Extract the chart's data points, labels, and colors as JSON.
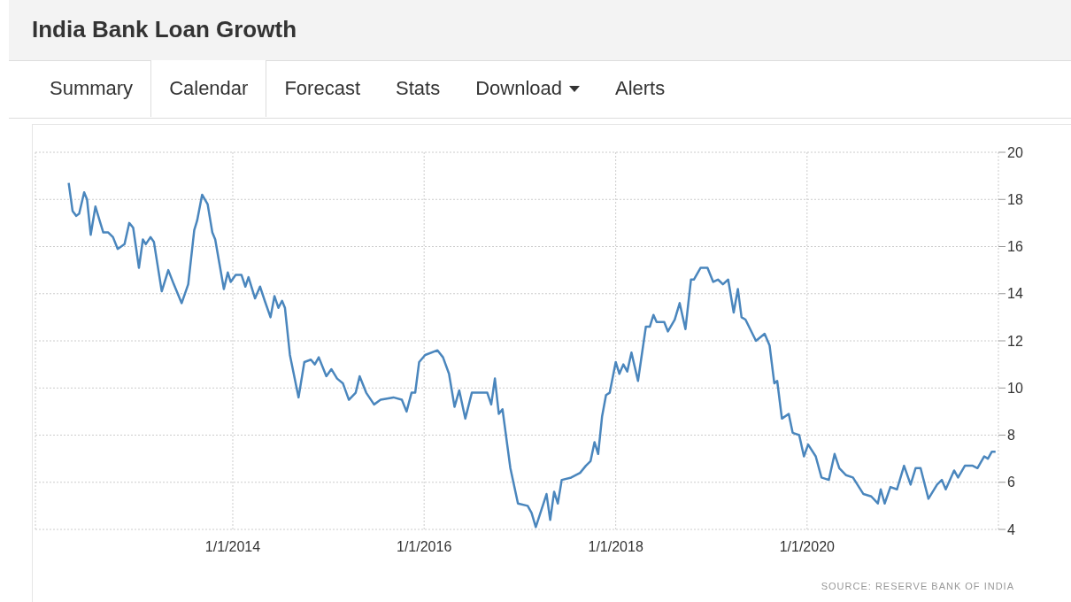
{
  "chart_data": {
    "type": "line",
    "title": "India Bank Loan Growth",
    "annotations": [
      "Summary",
      "Calendar",
      "Forecast",
      "Stats",
      "Download",
      "Alerts",
      "SOURCE: RESERVE BANK OF INDIA"
    ],
    "x": [
      "2012-04-15",
      "2012-04-30",
      "2012-05-14",
      "2012-05-25",
      "2012-06-13",
      "2012-06-24",
      "2012-07-08",
      "2012-07-26",
      "2012-08-11",
      "2012-08-25",
      "2012-09-13",
      "2012-10-01",
      "2012-10-19",
      "2012-11-14",
      "2012-12-02",
      "2012-12-17",
      "2013-01-08",
      "2013-01-23",
      "2013-02-03",
      "2013-02-21",
      "2013-03-06",
      "2013-04-05",
      "2013-04-30",
      "2013-05-21",
      "2013-06-20",
      "2013-07-15",
      "2013-08-07",
      "2013-08-18",
      "2013-09-06",
      "2013-09-27",
      "2013-10-15",
      "2013-10-26",
      "2013-11-28",
      "2013-12-13",
      "2013-12-24",
      "2014-01-12",
      "2014-02-03",
      "2014-02-18",
      "2014-03-02",
      "2014-03-27",
      "2014-04-15",
      "2014-05-03",
      "2014-05-25",
      "2014-06-09",
      "2014-06-24",
      "2014-07-08",
      "2014-07-19",
      "2014-08-07",
      "2014-09-09",
      "2014-10-01",
      "2014-10-26",
      "2014-11-10",
      "2014-11-25",
      "2014-12-24",
      "2015-01-12",
      "2015-02-03",
      "2015-02-25",
      "2015-03-20",
      "2015-04-15",
      "2015-04-30",
      "2015-05-25",
      "2015-06-24",
      "2015-07-19",
      "2015-09-06",
      "2015-10-08",
      "2015-10-26",
      "2015-11-14",
      "2015-11-28",
      "2015-12-13",
      "2016-01-05",
      "2016-02-21",
      "2016-03-13",
      "2016-04-05",
      "2016-04-26",
      "2016-05-14",
      "2016-06-06",
      "2016-07-01",
      "2016-07-30",
      "2016-08-29",
      "2016-09-13",
      "2016-09-27",
      "2016-10-12",
      "2016-10-26",
      "2016-11-25",
      "2016-12-24",
      "2017-01-30",
      "2017-02-14",
      "2017-03-02",
      "2017-04-12",
      "2017-04-26",
      "2017-05-11",
      "2017-05-25",
      "2017-06-09",
      "2017-07-15",
      "2017-08-18",
      "2017-09-09",
      "2017-09-27",
      "2017-10-12",
      "2017-10-26",
      "2017-11-10",
      "2017-11-25",
      "2017-12-09",
      "2018-01-01",
      "2018-01-15",
      "2018-01-30",
      "2018-02-14",
      "2018-03-02",
      "2018-03-27",
      "2018-04-26",
      "2018-05-11",
      "2018-05-25",
      "2018-06-06",
      "2018-07-05",
      "2018-07-19",
      "2018-08-14",
      "2018-09-02",
      "2018-09-24",
      "2018-10-15",
      "2018-10-26",
      "2018-11-21",
      "2018-12-17",
      "2019-01-08",
      "2019-01-26",
      "2019-02-14",
      "2019-03-06",
      "2019-03-27",
      "2019-04-12",
      "2019-04-26",
      "2019-05-11",
      "2019-06-20",
      "2019-07-23",
      "2019-08-11",
      "2019-08-29",
      "2019-09-09",
      "2019-09-27",
      "2019-10-23",
      "2019-11-07",
      "2019-12-02",
      "2019-12-20",
      "2020-01-05",
      "2020-02-03",
      "2020-02-25",
      "2020-03-24",
      "2020-04-15",
      "2020-05-03",
      "2020-05-29",
      "2020-06-24",
      "2020-08-03",
      "2020-09-02",
      "2020-09-27",
      "2020-10-08",
      "2020-10-23",
      "2020-11-14",
      "2020-12-09",
      "2021-01-05",
      "2021-01-30",
      "2021-02-18",
      "2021-03-09",
      "2021-04-08",
      "2021-05-11",
      "2021-05-29",
      "2021-06-13",
      "2021-07-15",
      "2021-07-30",
      "2021-08-25",
      "2021-09-24",
      "2021-10-12",
      "2021-11-07",
      "2021-11-21",
      "2021-12-06",
      "2021-12-20"
    ],
    "series": [
      {
        "color": "#4a86bd",
        "values": [
          18.7,
          17.5,
          17.3,
          17.4,
          18.3,
          18.0,
          16.5,
          17.7,
          17.1,
          16.6,
          16.6,
          16.4,
          15.9,
          16.1,
          17.0,
          16.8,
          15.1,
          16.3,
          16.1,
          16.4,
          16.2,
          14.1,
          15.0,
          14.4,
          13.6,
          14.4,
          16.7,
          17.1,
          18.2,
          17.8,
          16.6,
          16.3,
          14.2,
          14.9,
          14.5,
          14.8,
          14.8,
          14.3,
          14.7,
          13.8,
          14.3,
          13.7,
          13.0,
          13.9,
          13.4,
          13.7,
          13.4,
          11.4,
          9.6,
          11.1,
          11.2,
          11.0,
          11.3,
          10.5,
          10.8,
          10.4,
          10.2,
          9.5,
          9.8,
          10.5,
          9.8,
          9.3,
          9.5,
          9.6,
          9.5,
          9.0,
          9.8,
          9.8,
          11.1,
          11.4,
          11.6,
          11.3,
          10.6,
          9.2,
          9.9,
          8.7,
          9.8,
          9.8,
          9.8,
          9.3,
          10.4,
          8.9,
          9.1,
          6.6,
          5.1,
          5.0,
          4.7,
          4.1,
          5.5,
          4.4,
          5.6,
          5.1,
          6.1,
          6.2,
          6.4,
          6.7,
          6.9,
          7.7,
          7.2,
          8.8,
          9.7,
          9.8,
          11.1,
          10.6,
          11.0,
          10.7,
          11.5,
          10.3,
          12.6,
          12.6,
          13.1,
          12.8,
          12.8,
          12.4,
          12.9,
          13.6,
          12.5,
          14.6,
          14.6,
          15.1,
          15.1,
          14.5,
          14.6,
          14.4,
          14.6,
          13.2,
          14.2,
          13.0,
          12.9,
          12.0,
          12.3,
          11.8,
          10.2,
          10.3,
          8.7,
          8.9,
          8.1,
          8.0,
          7.1,
          7.6,
          7.1,
          6.2,
          6.1,
          7.2,
          6.6,
          6.3,
          6.2,
          5.5,
          5.4,
          5.1,
          5.7,
          5.1,
          5.8,
          5.7,
          6.7,
          5.9,
          6.6,
          6.6,
          5.3,
          5.9,
          6.1,
          5.7,
          6.5,
          6.2,
          6.7,
          6.7,
          6.6,
          7.1,
          7.0,
          7.3,
          7.3
        ]
      }
    ],
    "xlim": [
      "2011-12-10",
      "2021-12-31"
    ],
    "xticks": [
      {
        "value": "2014-01-01",
        "label": "1/1/2014"
      },
      {
        "value": "2016-01-01",
        "label": "1/1/2016"
      },
      {
        "value": "2018-01-01",
        "label": "1/1/2018"
      },
      {
        "value": "2020-01-01",
        "label": "1/1/2020"
      }
    ],
    "ylim": [
      4,
      20
    ],
    "yticks": [
      4,
      6,
      8,
      10,
      12,
      14,
      16,
      18,
      20
    ],
    "grid": true,
    "marker": "none",
    "line_style": "solid"
  }
}
